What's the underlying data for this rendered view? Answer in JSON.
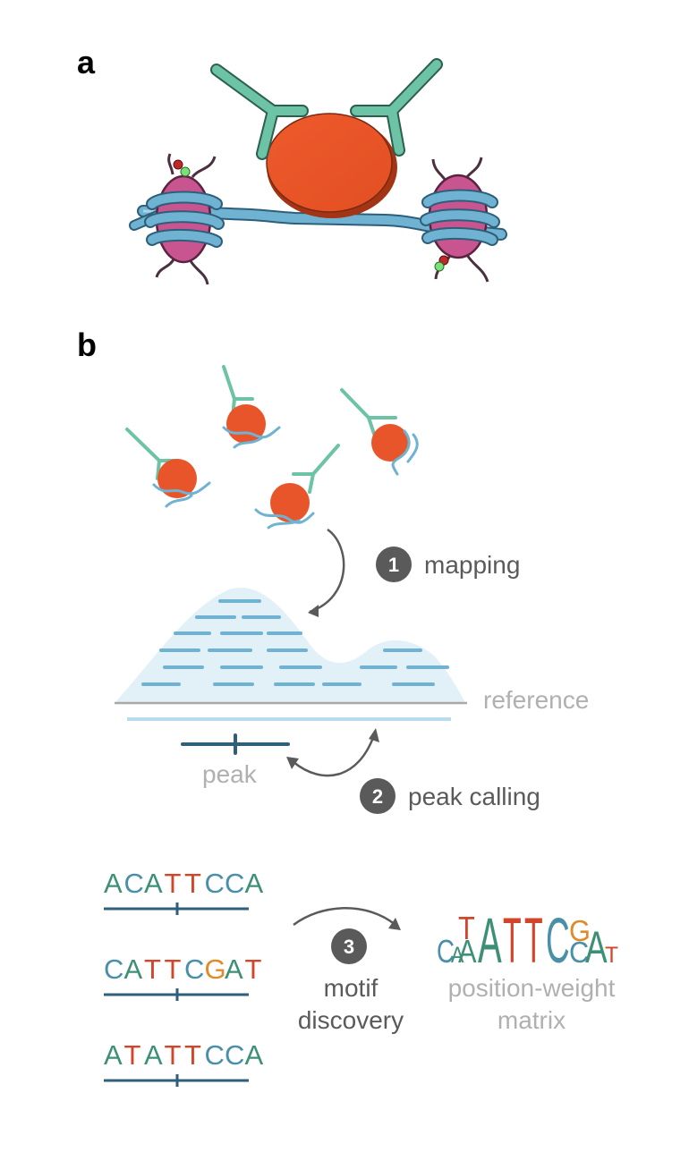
{
  "panels": {
    "a": "a",
    "b": "b"
  },
  "steps": [
    {
      "number": "1",
      "label": "mapping"
    },
    {
      "number": "2",
      "label": "peak calling"
    },
    {
      "number": "3",
      "label_line1": "motif",
      "label_line2": "discovery"
    }
  ],
  "labels": {
    "reference": "reference",
    "peak": "peak",
    "pwm_line1": "position-weight",
    "pwm_line2": "matrix"
  },
  "sequences": [
    {
      "letters": [
        "A",
        "C",
        "A",
        "T",
        "T",
        "C",
        "C",
        "A"
      ]
    },
    {
      "letters": [
        "C",
        "A",
        "T",
        "T",
        "C",
        "G",
        "A",
        "T"
      ]
    },
    {
      "letters": [
        "A",
        "T",
        "A",
        "T",
        "T",
        "C",
        "C",
        "A"
      ]
    }
  ],
  "motif_logo": [
    {
      "stack": [
        "C",
        "A"
      ]
    },
    {
      "stack": [
        "T",
        "A"
      ]
    },
    {
      "stack": [
        "A"
      ]
    },
    {
      "stack": [
        "T"
      ]
    },
    {
      "stack": [
        "T"
      ]
    },
    {
      "stack": [
        "C"
      ]
    },
    {
      "stack": [
        "G",
        "C"
      ]
    },
    {
      "stack": [
        "A"
      ]
    },
    {
      "stack": [
        "T"
      ]
    }
  ],
  "colors": {
    "A": "#3d8f76",
    "C": "#4a8fa8",
    "G": "#e08a2a",
    "T": "#d2452a",
    "antibody": "#6cc3a5",
    "protein": "#e8552a",
    "dna": "#6fb2d2",
    "histone": "#c85590",
    "peak_line": "#2f5f7a",
    "step_badge": "#5a5a5a",
    "grey_text": "#b0b0b0"
  },
  "icons": [
    "antibody-icon",
    "protein-icon",
    "nucleosome-icon",
    "dna-strand-icon"
  ]
}
